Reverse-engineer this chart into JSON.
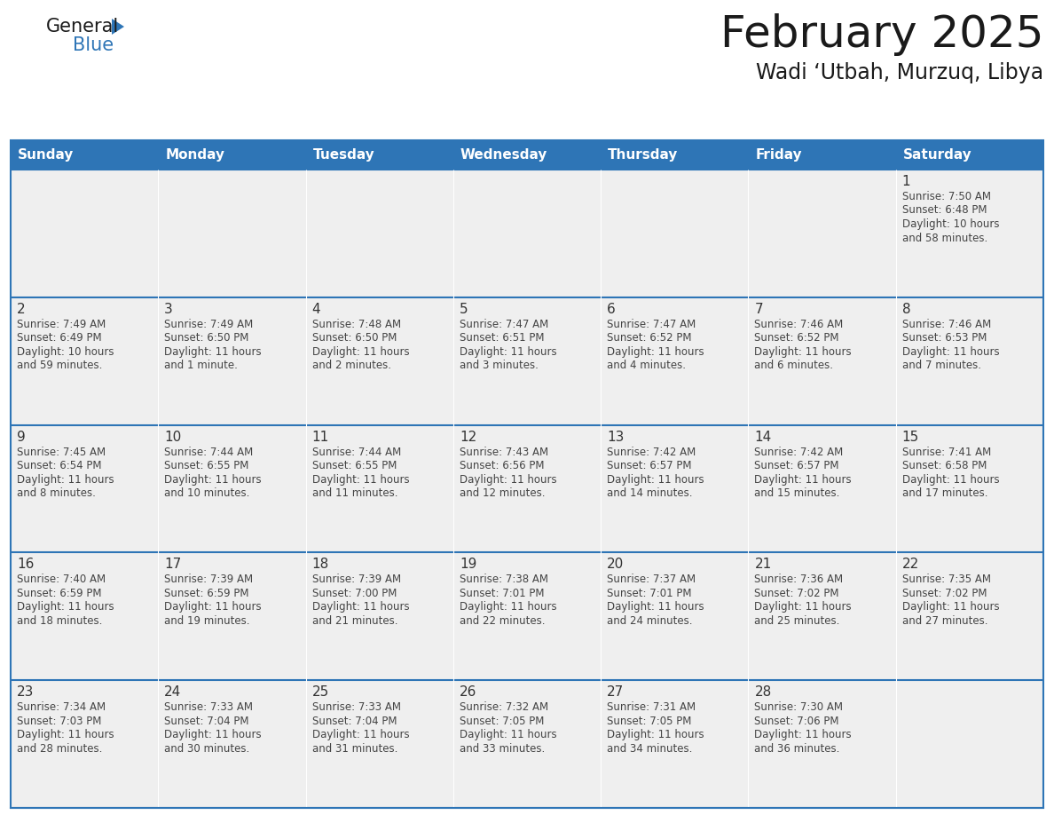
{
  "title": "February 2025",
  "subtitle": "Wadi ‘Utbah, Murzuq, Libya",
  "days_of_week": [
    "Sunday",
    "Monday",
    "Tuesday",
    "Wednesday",
    "Thursday",
    "Friday",
    "Saturday"
  ],
  "header_bg": "#2E75B6",
  "header_text_color": "#FFFFFF",
  "cell_bg": "#EFEFEF",
  "grid_line_color": "#2E75B6",
  "title_color": "#1a1a1a",
  "subtitle_color": "#1a1a1a",
  "day_num_color": "#333333",
  "text_color": "#444444",
  "logo_black": "#1a1a1a",
  "logo_blue": "#2E75B6",
  "logo_triangle_color": "#2E75B6",
  "figsize": [
    11.88,
    9.18
  ],
  "dpi": 100,
  "calendar_data": [
    [
      null,
      null,
      null,
      null,
      null,
      null,
      {
        "day": "1",
        "sunrise": "7:50 AM",
        "sunset": "6:48 PM",
        "daylight1": "10 hours",
        "daylight2": "and 58 minutes."
      }
    ],
    [
      {
        "day": "2",
        "sunrise": "7:49 AM",
        "sunset": "6:49 PM",
        "daylight1": "10 hours",
        "daylight2": "and 59 minutes."
      },
      {
        "day": "3",
        "sunrise": "7:49 AM",
        "sunset": "6:50 PM",
        "daylight1": "11 hours",
        "daylight2": "and 1 minute."
      },
      {
        "day": "4",
        "sunrise": "7:48 AM",
        "sunset": "6:50 PM",
        "daylight1": "11 hours",
        "daylight2": "and 2 minutes."
      },
      {
        "day": "5",
        "sunrise": "7:47 AM",
        "sunset": "6:51 PM",
        "daylight1": "11 hours",
        "daylight2": "and 3 minutes."
      },
      {
        "day": "6",
        "sunrise": "7:47 AM",
        "sunset": "6:52 PM",
        "daylight1": "11 hours",
        "daylight2": "and 4 minutes."
      },
      {
        "day": "7",
        "sunrise": "7:46 AM",
        "sunset": "6:52 PM",
        "daylight1": "11 hours",
        "daylight2": "and 6 minutes."
      },
      {
        "day": "8",
        "sunrise": "7:46 AM",
        "sunset": "6:53 PM",
        "daylight1": "11 hours",
        "daylight2": "and 7 minutes."
      }
    ],
    [
      {
        "day": "9",
        "sunrise": "7:45 AM",
        "sunset": "6:54 PM",
        "daylight1": "11 hours",
        "daylight2": "and 8 minutes."
      },
      {
        "day": "10",
        "sunrise": "7:44 AM",
        "sunset": "6:55 PM",
        "daylight1": "11 hours",
        "daylight2": "and 10 minutes."
      },
      {
        "day": "11",
        "sunrise": "7:44 AM",
        "sunset": "6:55 PM",
        "daylight1": "11 hours",
        "daylight2": "and 11 minutes."
      },
      {
        "day": "12",
        "sunrise": "7:43 AM",
        "sunset": "6:56 PM",
        "daylight1": "11 hours",
        "daylight2": "and 12 minutes."
      },
      {
        "day": "13",
        "sunrise": "7:42 AM",
        "sunset": "6:57 PM",
        "daylight1": "11 hours",
        "daylight2": "and 14 minutes."
      },
      {
        "day": "14",
        "sunrise": "7:42 AM",
        "sunset": "6:57 PM",
        "daylight1": "11 hours",
        "daylight2": "and 15 minutes."
      },
      {
        "day": "15",
        "sunrise": "7:41 AM",
        "sunset": "6:58 PM",
        "daylight1": "11 hours",
        "daylight2": "and 17 minutes."
      }
    ],
    [
      {
        "day": "16",
        "sunrise": "7:40 AM",
        "sunset": "6:59 PM",
        "daylight1": "11 hours",
        "daylight2": "and 18 minutes."
      },
      {
        "day": "17",
        "sunrise": "7:39 AM",
        "sunset": "6:59 PM",
        "daylight1": "11 hours",
        "daylight2": "and 19 minutes."
      },
      {
        "day": "18",
        "sunrise": "7:39 AM",
        "sunset": "7:00 PM",
        "daylight1": "11 hours",
        "daylight2": "and 21 minutes."
      },
      {
        "day": "19",
        "sunrise": "7:38 AM",
        "sunset": "7:01 PM",
        "daylight1": "11 hours",
        "daylight2": "and 22 minutes."
      },
      {
        "day": "20",
        "sunrise": "7:37 AM",
        "sunset": "7:01 PM",
        "daylight1": "11 hours",
        "daylight2": "and 24 minutes."
      },
      {
        "day": "21",
        "sunrise": "7:36 AM",
        "sunset": "7:02 PM",
        "daylight1": "11 hours",
        "daylight2": "and 25 minutes."
      },
      {
        "day": "22",
        "sunrise": "7:35 AM",
        "sunset": "7:02 PM",
        "daylight1": "11 hours",
        "daylight2": "and 27 minutes."
      }
    ],
    [
      {
        "day": "23",
        "sunrise": "7:34 AM",
        "sunset": "7:03 PM",
        "daylight1": "11 hours",
        "daylight2": "and 28 minutes."
      },
      {
        "day": "24",
        "sunrise": "7:33 AM",
        "sunset": "7:04 PM",
        "daylight1": "11 hours",
        "daylight2": "and 30 minutes."
      },
      {
        "day": "25",
        "sunrise": "7:33 AM",
        "sunset": "7:04 PM",
        "daylight1": "11 hours",
        "daylight2": "and 31 minutes."
      },
      {
        "day": "26",
        "sunrise": "7:32 AM",
        "sunset": "7:05 PM",
        "daylight1": "11 hours",
        "daylight2": "and 33 minutes."
      },
      {
        "day": "27",
        "sunrise": "7:31 AM",
        "sunset": "7:05 PM",
        "daylight1": "11 hours",
        "daylight2": "and 34 minutes."
      },
      {
        "day": "28",
        "sunrise": "7:30 AM",
        "sunset": "7:06 PM",
        "daylight1": "11 hours",
        "daylight2": "and 36 minutes."
      },
      null
    ]
  ]
}
